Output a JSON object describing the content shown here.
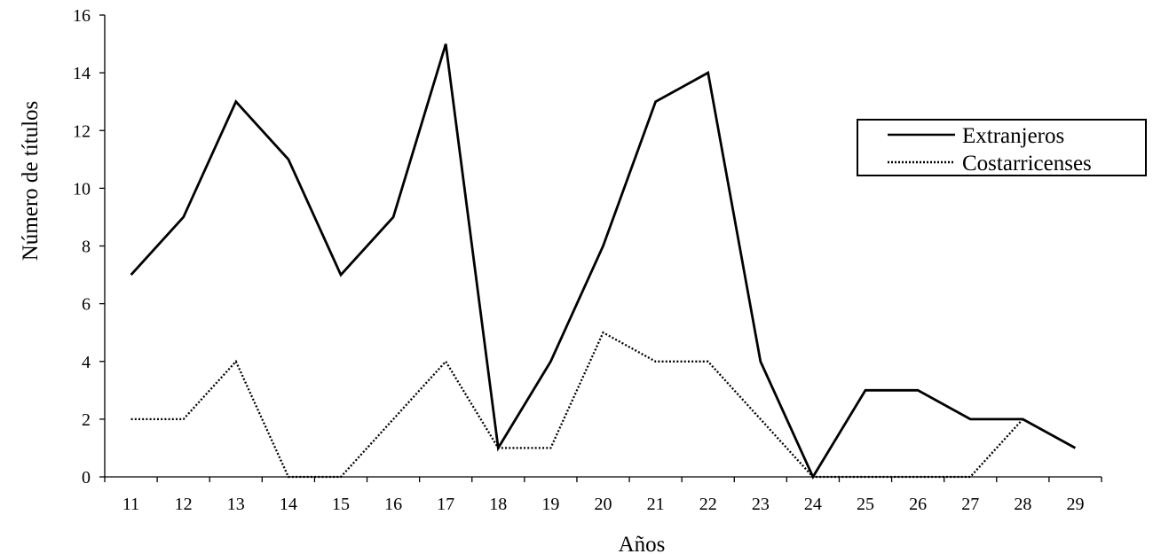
{
  "chart_data": {
    "type": "line",
    "xlabel": "Años",
    "ylabel": "Número de títulos",
    "categories": [
      "11",
      "12",
      "13",
      "14",
      "15",
      "16",
      "17",
      "18",
      "19",
      "20",
      "21",
      "22",
      "23",
      "24",
      "25",
      "26",
      "27",
      "28",
      "29"
    ],
    "ylim": [
      0,
      16
    ],
    "yticks": [
      "0",
      "2",
      "4",
      "6",
      "8",
      "10",
      "12",
      "14",
      "16"
    ],
    "grid": false,
    "legend_position": "right",
    "series": [
      {
        "name": "Extranjeros",
        "style": "solid",
        "color": "#000000",
        "values": [
          7,
          9,
          13,
          11,
          7,
          9,
          15,
          1,
          4,
          8,
          13,
          14,
          4,
          0,
          3,
          3,
          2,
          2,
          1
        ]
      },
      {
        "name": "Costarricenses",
        "style": "dotted",
        "color": "#000000",
        "values": [
          2,
          2,
          4,
          0,
          0,
          2,
          4,
          1,
          1,
          5,
          4,
          4,
          2,
          0,
          0,
          0,
          0,
          2,
          null
        ]
      }
    ]
  }
}
